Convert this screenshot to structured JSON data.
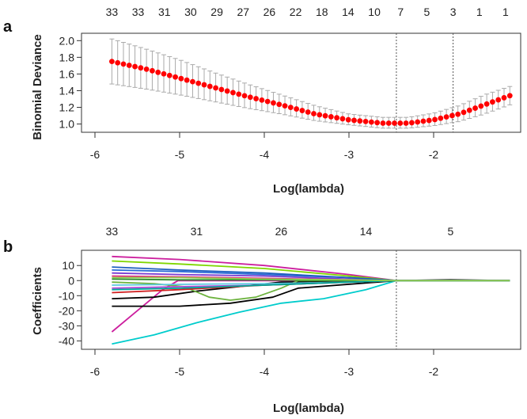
{
  "chart_data": [
    {
      "panel": "a",
      "type": "scatter",
      "xlabel": "Log(lambda)",
      "ylabel": "Binomial Deviance",
      "xlim": [
        -6.0,
        -1.0
      ],
      "ylim": [
        0.92,
        2.06
      ],
      "x_ticks": [
        "-6",
        "-5",
        "-4",
        "-3",
        "-2"
      ],
      "y_ticks": [
        "1.0",
        "1.2",
        "1.4",
        "1.6",
        "1.8",
        "2.0"
      ],
      "top_axis_labels": [
        "33",
        "33",
        "31",
        "30",
        "29",
        "27",
        "26",
        "22",
        "18",
        "14",
        "10",
        "7",
        "5",
        "3",
        "1",
        "1"
      ],
      "vlines": [
        -2.44,
        -1.77
      ],
      "grid": false,
      "series": [
        {
          "color": "#ff0000",
          "error_bar_color": "#aaaaaa",
          "points": [
            {
              "x": -5.8,
              "y": 1.75,
              "lo": 1.48,
              "hi": 2.02
            },
            {
              "x": -5.4,
              "y": 1.66,
              "lo": 1.42,
              "hi": 1.9
            },
            {
              "x": -5.0,
              "y": 1.55,
              "lo": 1.35,
              "hi": 1.77
            },
            {
              "x": -4.6,
              "y": 1.44,
              "lo": 1.27,
              "hi": 1.62
            },
            {
              "x": -4.2,
              "y": 1.33,
              "lo": 1.19,
              "hi": 1.48
            },
            {
              "x": -3.8,
              "y": 1.23,
              "lo": 1.12,
              "hi": 1.35
            },
            {
              "x": -3.4,
              "y": 1.12,
              "lo": 1.04,
              "hi": 1.22
            },
            {
              "x": -3.0,
              "y": 1.05,
              "lo": 0.99,
              "hi": 1.12
            },
            {
              "x": -2.6,
              "y": 1.01,
              "lo": 0.95,
              "hi": 1.08
            },
            {
              "x": -2.3,
              "y": 1.01,
              "lo": 0.95,
              "hi": 1.08
            },
            {
              "x": -2.0,
              "y": 1.05,
              "lo": 0.98,
              "hi": 1.13
            },
            {
              "x": -1.7,
              "y": 1.12,
              "lo": 1.03,
              "hi": 1.22
            },
            {
              "x": -1.4,
              "y": 1.23,
              "lo": 1.12,
              "hi": 1.35
            },
            {
              "x": -1.1,
              "y": 1.34,
              "lo": 1.23,
              "hi": 1.45
            }
          ]
        }
      ]
    },
    {
      "panel": "b",
      "type": "line",
      "xlabel": "Log(lambda)",
      "ylabel": "Coefficients",
      "xlim": [
        -6.0,
        -1.0
      ],
      "ylim": [
        -44,
        18
      ],
      "x_ticks": [
        "-6",
        "-5",
        "-4",
        "-3",
        "-2"
      ],
      "y_ticks": [
        "-40",
        "-30",
        "-20",
        "-10",
        "0",
        "10"
      ],
      "top_axis_labels": [
        "33",
        "31",
        "26",
        "14",
        "5"
      ],
      "vlines": [
        -2.44
      ],
      "grid": false,
      "series": [
        {
          "color": "#00cccc",
          "points": [
            [
              -5.8,
              -42
            ],
            [
              -5.3,
              -36
            ],
            [
              -4.8,
              -28
            ],
            [
              -4.3,
              -21
            ],
            [
              -3.8,
              -15
            ],
            [
              -3.3,
              -12
            ],
            [
              -2.8,
              -6
            ],
            [
              -2.44,
              0
            ],
            [
              -1.1,
              0
            ]
          ]
        },
        {
          "color": "#cc1f9e",
          "points": [
            [
              -5.8,
              -34
            ],
            [
              -5.5,
              -20
            ],
            [
              -5.2,
              -6
            ],
            [
              -5.02,
              0
            ],
            [
              -2.44,
              0
            ],
            [
              -1.1,
              0
            ]
          ]
        },
        {
          "color": "#cc1f9e",
          "points": [
            [
              -5.8,
              16
            ],
            [
              -5.0,
              14
            ],
            [
              -4.0,
              10
            ],
            [
              -3.0,
              4
            ],
            [
              -2.44,
              0
            ],
            [
              -1.1,
              0
            ]
          ]
        },
        {
          "color": "#7fd600",
          "points": [
            [
              -5.8,
              13
            ],
            [
              -5.0,
              11
            ],
            [
              -4.0,
              8
            ],
            [
              -3.0,
              3
            ],
            [
              -2.44,
              0
            ],
            [
              -1.1,
              0
            ]
          ]
        },
        {
          "color": "#000000",
          "points": [
            [
              -5.8,
              -12
            ],
            [
              -5.3,
              -11
            ],
            [
              -4.8,
              -7
            ],
            [
              -4.3,
              -4
            ],
            [
              -3.8,
              -1
            ],
            [
              -2.44,
              0
            ],
            [
              -1.1,
              0
            ]
          ]
        },
        {
          "color": "#000000",
          "points": [
            [
              -5.8,
              -17
            ],
            [
              -5.0,
              -17
            ],
            [
              -4.4,
              -15
            ],
            [
              -3.9,
              -11
            ],
            [
              -3.6,
              -5
            ],
            [
              -2.44,
              0
            ],
            [
              -1.8,
              0.5
            ],
            [
              -1.1,
              0
            ]
          ]
        },
        {
          "color": "#6db33f",
          "points": [
            [
              -5.8,
              -1
            ],
            [
              -5.3,
              -2
            ],
            [
              -4.95,
              -4
            ],
            [
              -4.65,
              -11
            ],
            [
              -4.4,
              -13
            ],
            [
              -4.1,
              -11
            ],
            [
              -3.8,
              -5
            ],
            [
              -3.6,
              0
            ],
            [
              -2.44,
              0
            ],
            [
              -1.1,
              0
            ]
          ]
        },
        {
          "color": "#2a6bd6",
          "points": [
            [
              -5.8,
              7
            ],
            [
              -5.0,
              6
            ],
            [
              -4.0,
              4
            ],
            [
              -3.0,
              2
            ],
            [
              -2.44,
              0
            ],
            [
              -1.1,
              0
            ]
          ]
        },
        {
          "color": "#7a3cd1",
          "points": [
            [
              -5.8,
              5
            ],
            [
              -5.0,
              4
            ],
            [
              -4.0,
              3
            ],
            [
              -3.0,
              1
            ],
            [
              -2.44,
              0
            ],
            [
              -1.1,
              0
            ]
          ]
        },
        {
          "color": "#e0287a",
          "points": [
            [
              -5.8,
              3
            ],
            [
              -5.0,
              2.5
            ],
            [
              -4.0,
              1.5
            ],
            [
              -3.0,
              0.5
            ],
            [
              -2.44,
              0
            ],
            [
              -1.1,
              0
            ]
          ]
        },
        {
          "color": "#2d8a2d",
          "points": [
            [
              -5.8,
              1
            ],
            [
              -5.0,
              0.5
            ],
            [
              -4.0,
              0.5
            ],
            [
              -3.0,
              0
            ],
            [
              -2.44,
              0
            ],
            [
              -1.1,
              0
            ]
          ]
        },
        {
          "color": "#5bc8e0",
          "points": [
            [
              -5.8,
              -3
            ],
            [
              -5.0,
              -2.5
            ],
            [
              -4.0,
              -2
            ],
            [
              -3.0,
              -1
            ],
            [
              -2.44,
              0
            ],
            [
              -1.1,
              0
            ]
          ]
        },
        {
          "color": "#b44ad9",
          "points": [
            [
              -5.8,
              -5
            ],
            [
              -5.0,
              -4
            ],
            [
              -4.0,
              -3
            ],
            [
              -3.0,
              -1
            ],
            [
              -2.44,
              0
            ],
            [
              -1.1,
              0
            ]
          ]
        },
        {
          "color": "#d02020",
          "points": [
            [
              -5.8,
              -8
            ],
            [
              -5.0,
              -6
            ],
            [
              -4.0,
              -3
            ],
            [
              -3.0,
              -1
            ],
            [
              -2.44,
              0
            ],
            [
              -1.1,
              0
            ]
          ]
        },
        {
          "color": "#1f5fbf",
          "points": [
            [
              -5.8,
              9
            ],
            [
              -5.0,
              7
            ],
            [
              -4.0,
              5
            ],
            [
              -3.0,
              2
            ],
            [
              -2.44,
              0
            ],
            [
              -1.1,
              0
            ]
          ]
        },
        {
          "color": "#00a89a",
          "points": [
            [
              -5.8,
              -6
            ],
            [
              -5.0,
              -5
            ],
            [
              -4.0,
              -3
            ],
            [
              -3.0,
              -1
            ],
            [
              -2.44,
              0
            ],
            [
              -1.1,
              0
            ]
          ]
        },
        {
          "color": "#8fd14f",
          "points": [
            [
              -5.8,
              2
            ],
            [
              -5.0,
              2
            ],
            [
              -4.0,
              1
            ],
            [
              -3.0,
              0.5
            ],
            [
              -2.44,
              0
            ],
            [
              -1.1,
              0
            ]
          ]
        }
      ]
    }
  ]
}
